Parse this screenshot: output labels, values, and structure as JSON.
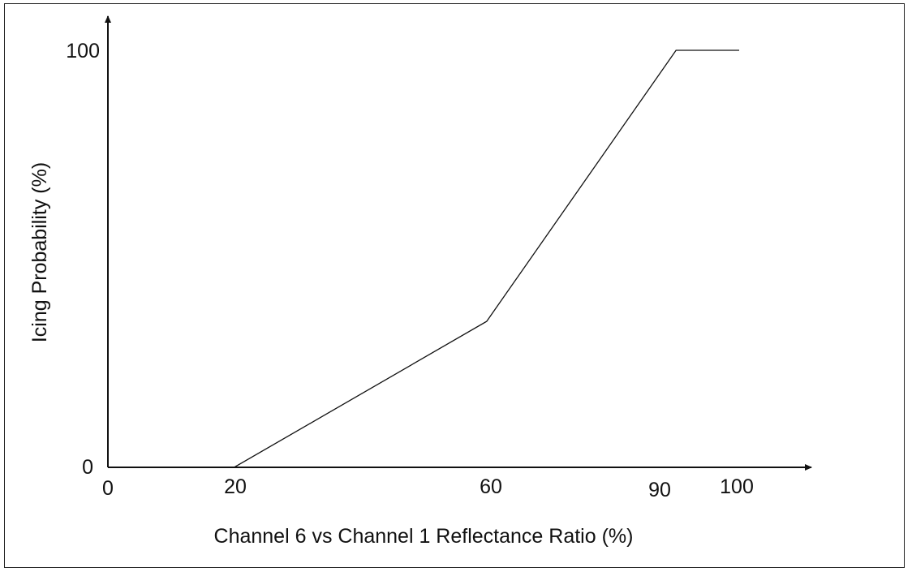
{
  "chart_data": {
    "type": "line",
    "title": "",
    "xlabel": "Channel 6 vs Channel 1 Reflectance Ratio (%)",
    "ylabel": "Icing Probability (%)",
    "xlim": [
      0,
      100
    ],
    "ylim": [
      0,
      100
    ],
    "x_ticks": [
      "0",
      "20",
      "60",
      "90",
      "100"
    ],
    "y_ticks": [
      "0",
      "100"
    ],
    "grid": false,
    "series": [
      {
        "x": [
          0,
          20,
          60,
          90,
          100
        ],
        "y": [
          0,
          0,
          35,
          100,
          100
        ]
      }
    ]
  }
}
